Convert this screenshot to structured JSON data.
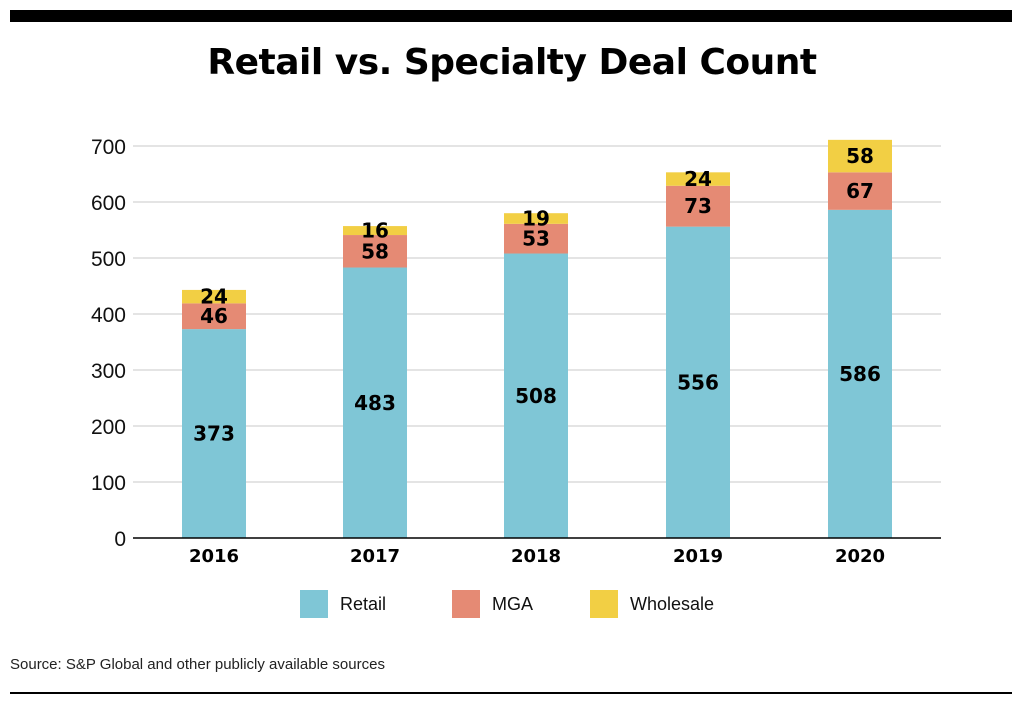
{
  "chart_data": {
    "type": "bar",
    "stacked": true,
    "title": "Retail vs. Specialty Deal Count",
    "xlabel": "",
    "ylabel": "",
    "ylim": [
      0,
      700
    ],
    "yticks": [
      0,
      100,
      200,
      300,
      400,
      500,
      600,
      700
    ],
    "categories": [
      "2016",
      "2017",
      "2018",
      "2019",
      "2020"
    ],
    "series": [
      {
        "name": "Retail",
        "color": "#7fc6d6",
        "values": [
          373,
          483,
          508,
          556,
          586
        ]
      },
      {
        "name": "MGA",
        "color": "#e58a74",
        "values": [
          46,
          58,
          53,
          73,
          67
        ]
      },
      {
        "name": "Wholesale",
        "color": "#f2cf44",
        "values": [
          24,
          16,
          19,
          24,
          58
        ]
      }
    ],
    "grid": true,
    "legend": "bottom"
  },
  "source": "Source: S&P Global and other publicly available sources"
}
